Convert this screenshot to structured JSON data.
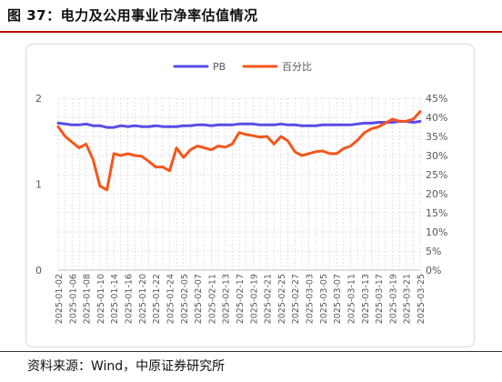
{
  "figure": {
    "title": "图 37：电力及公用事业市净率估值情况",
    "source": "资料来源：Wind，中原证券研究所"
  },
  "colors": {
    "pb": "#5b4be6",
    "pct": "#f4561c",
    "grid": "#d9d9d9",
    "text": "#595959",
    "accent": "#c00000"
  },
  "chart_data": {
    "type": "line",
    "legend_position": "top-center",
    "grid": true,
    "x": [
      "2025-01-02",
      "2025-01-03",
      "2025-01-06",
      "2025-01-07",
      "2025-01-08",
      "2025-01-09",
      "2025-01-10",
      "2025-01-13",
      "2025-01-14",
      "2025-01-15",
      "2025-01-16",
      "2025-01-17",
      "2025-01-20",
      "2025-01-21",
      "2025-01-22",
      "2025-01-23",
      "2025-01-24",
      "2025-01-27",
      "2025-02-05",
      "2025-02-06",
      "2025-02-07",
      "2025-02-10",
      "2025-02-11",
      "2025-02-12",
      "2025-02-13",
      "2025-02-14",
      "2025-02-17",
      "2025-02-18",
      "2025-02-19",
      "2025-02-20",
      "2025-02-21",
      "2025-02-24",
      "2025-02-25",
      "2025-02-26",
      "2025-02-27",
      "2025-02-28",
      "2025-03-03",
      "2025-03-04",
      "2025-03-05",
      "2025-03-06",
      "2025-03-07",
      "2025-03-10",
      "2025-03-11",
      "2025-03-12",
      "2025-03-13",
      "2025-03-14",
      "2025-03-17",
      "2025-03-18",
      "2025-03-19",
      "2025-03-20",
      "2025-03-21",
      "2025-03-24",
      "2025-03-25"
    ],
    "x_tick_labels": [
      "2025-01-02",
      "2025-01-06",
      "2025-01-08",
      "2025-01-10",
      "2025-01-14",
      "2025-01-16",
      "2025-01-20",
      "2025-01-22",
      "2025-01-24",
      "2025-02-05",
      "2025-02-07",
      "2025-02-11",
      "2025-02-13",
      "2025-02-17",
      "2025-02-19",
      "2025-02-21",
      "2025-02-25",
      "2025-02-27",
      "2025-03-03",
      "2025-03-05",
      "2025-03-07",
      "2025-03-11",
      "2025-03-13",
      "2025-03-17",
      "2025-03-19",
      "2025-03-21",
      "2025-03-25"
    ],
    "y_left": {
      "ylim": [
        0,
        2
      ],
      "ticks": [
        "0",
        "1",
        "2"
      ]
    },
    "y_right": {
      "ylim": [
        0,
        45
      ],
      "ticks": [
        "0%",
        "5%",
        "10%",
        "15%",
        "20%",
        "25%",
        "30%",
        "35%",
        "40%",
        "45%"
      ]
    },
    "series": [
      {
        "name": "PB",
        "axis": "left",
        "values": [
          1.71,
          1.7,
          1.69,
          1.69,
          1.7,
          1.68,
          1.68,
          1.66,
          1.66,
          1.68,
          1.67,
          1.68,
          1.67,
          1.67,
          1.68,
          1.67,
          1.67,
          1.67,
          1.68,
          1.68,
          1.69,
          1.69,
          1.68,
          1.69,
          1.69,
          1.69,
          1.7,
          1.7,
          1.7,
          1.69,
          1.69,
          1.69,
          1.7,
          1.69,
          1.69,
          1.68,
          1.68,
          1.68,
          1.69,
          1.69,
          1.69,
          1.69,
          1.69,
          1.7,
          1.71,
          1.71,
          1.72,
          1.72,
          1.72,
          1.73,
          1.73,
          1.72,
          1.73
        ]
      },
      {
        "name": "百分比",
        "axis": "right",
        "values": [
          37.5,
          35.0,
          33.5,
          32.0,
          33.0,
          29.0,
          22.0,
          21.0,
          30.5,
          30.0,
          30.5,
          30.0,
          29.8,
          28.5,
          27.0,
          27.0,
          26.0,
          32.0,
          29.5,
          31.5,
          32.5,
          32.0,
          31.5,
          32.5,
          32.2,
          33.0,
          36.0,
          35.5,
          35.2,
          34.8,
          35.0,
          33.0,
          35.0,
          33.8,
          31.0,
          30.0,
          30.5,
          31.0,
          31.2,
          30.5,
          30.5,
          31.8,
          32.5,
          34.0,
          36.0,
          37.0,
          37.5,
          38.5,
          39.5,
          39.0,
          39.0,
          39.5,
          41.5
        ]
      }
    ]
  }
}
